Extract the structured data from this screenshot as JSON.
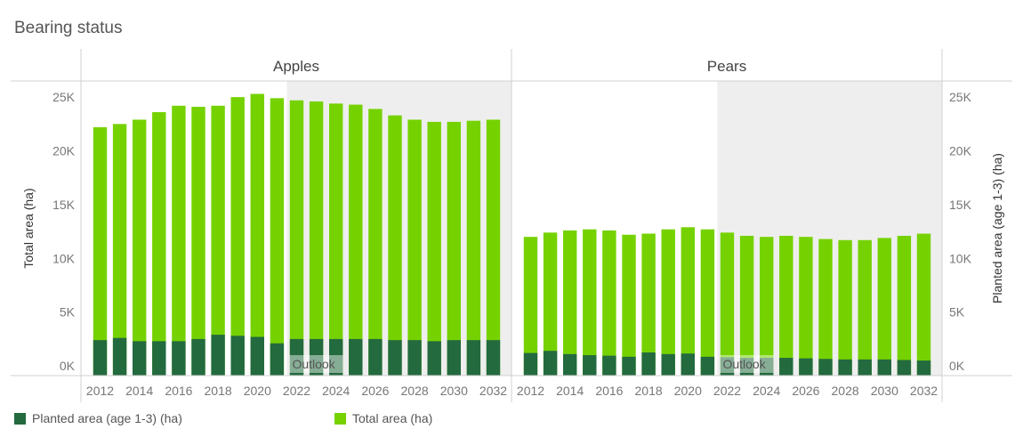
{
  "title": "Bearing status",
  "colors": {
    "planted": "#236a3f",
    "total": "#75d200",
    "outlook_shade": "#eeeeee",
    "axis_text": "#777777",
    "rule": "#d0d0d0"
  },
  "legend": [
    {
      "label": "Planted area (age 1-3) (ha)",
      "color": "#236a3f"
    },
    {
      "label": "Total area (ha)",
      "color": "#75d200"
    }
  ],
  "chart_data": {
    "type": "bar",
    "stacked": "overlaid",
    "x": [
      2012,
      2013,
      2014,
      2015,
      2016,
      2017,
      2018,
      2019,
      2020,
      2021,
      2022,
      2023,
      2024,
      2025,
      2026,
      2027,
      2028,
      2029,
      2030,
      2031,
      2032
    ],
    "x_tick_labels": [
      "2012",
      "2014",
      "2016",
      "2018",
      "2020",
      "2022",
      "2024",
      "2026",
      "2028",
      "2030",
      "2032"
    ],
    "y_ticks": [
      0,
      5000,
      10000,
      15000,
      20000,
      25000
    ],
    "y_tick_labels": [
      "0K",
      "5K",
      "10K",
      "15K",
      "20K",
      "25K"
    ],
    "ylim": [
      -900,
      26500
    ],
    "ylabel_left": "Total area (ha)",
    "ylabel_right": "Planted area (age 1-3) (ha)",
    "outlook_label": "Outlook",
    "outlook_start": 2022,
    "panels": [
      {
        "name": "Apples",
        "series": [
          {
            "name": "Total area (ha)",
            "values": [
              22200,
              22500,
              22900,
              23600,
              24200,
              24100,
              24200,
              25000,
              25300,
              24900,
              24700,
              24600,
              24400,
              24300,
              23900,
              23300,
              22900,
              22700,
              22700,
              22800,
              22900
            ]
          },
          {
            "name": "Planted area (age 1-3) (ha)",
            "values": [
              2400,
              2600,
              2300,
              2300,
              2300,
              2500,
              2900,
              2800,
              2700,
              2100,
              2500,
              2500,
              2500,
              2500,
              2500,
              2400,
              2400,
              2300,
              2400,
              2400,
              2400
            ]
          }
        ]
      },
      {
        "name": "Pears",
        "series": [
          {
            "name": "Total area (ha)",
            "values": [
              12000,
              12400,
              12600,
              12700,
              12600,
              12200,
              12300,
              12700,
              12900,
              12700,
              12400,
              12100,
              12000,
              12100,
              12000,
              11800,
              11700,
              11700,
              11900,
              12100,
              12300
            ]
          },
          {
            "name": "Planted area (age 1-3) (ha)",
            "values": [
              1200,
              1400,
              1100,
              1000,
              950,
              850,
              1250,
              1100,
              1150,
              850,
              800,
              750,
              750,
              750,
              700,
              650,
              600,
              600,
              600,
              550,
              500
            ]
          }
        ]
      }
    ]
  }
}
